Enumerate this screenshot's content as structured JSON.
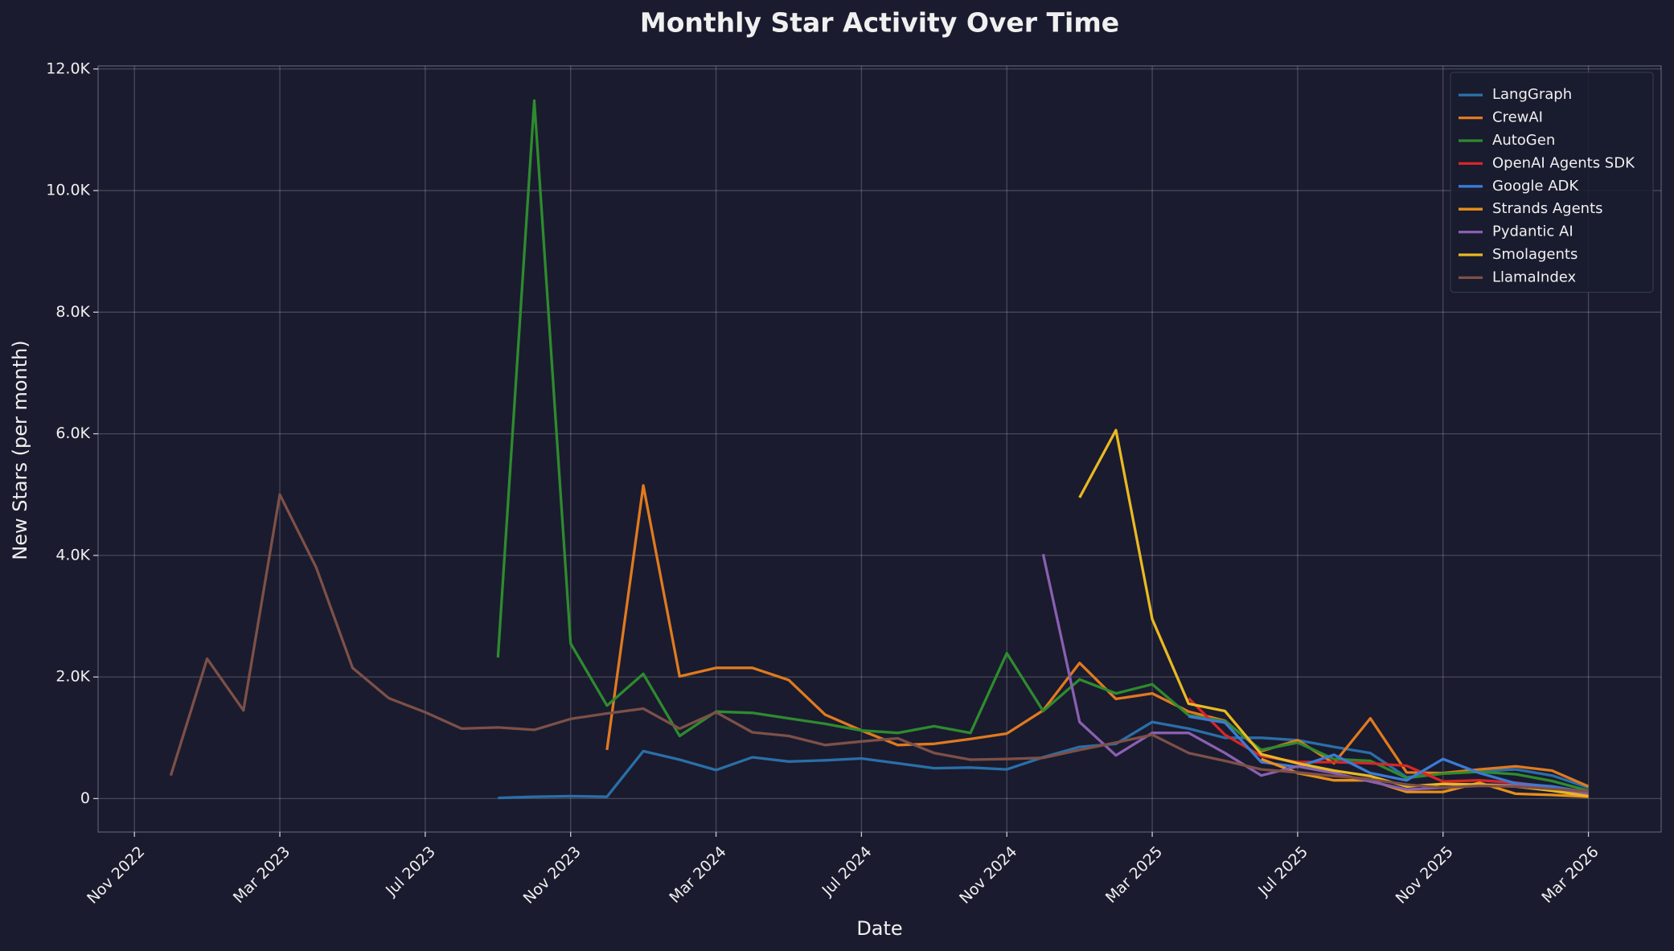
{
  "chart_data": {
    "type": "line",
    "title": "Monthly Star Activity Over Time",
    "x_label": "Date",
    "y_label": "New Stars (per month)",
    "x": [
      "2022-12",
      "2023-01",
      "2023-02",
      "2023-03",
      "2023-04",
      "2023-05",
      "2023-06",
      "2023-07",
      "2023-08",
      "2023-09",
      "2023-10",
      "2023-11",
      "2023-12",
      "2024-01",
      "2024-02",
      "2024-03",
      "2024-04",
      "2024-05",
      "2024-06",
      "2024-07",
      "2024-08",
      "2024-09",
      "2024-10",
      "2024-11",
      "2024-12",
      "2025-01",
      "2025-02",
      "2025-03",
      "2025-04",
      "2025-05",
      "2025-06",
      "2025-07",
      "2025-08",
      "2025-09",
      "2025-10",
      "2025-11",
      "2025-12",
      "2026-01",
      "2026-02",
      "2026-03"
    ],
    "xlim": [
      "2022-10",
      "2026-05"
    ],
    "xticks": [
      {
        "value": "2022-11",
        "label": "Nov 2022"
      },
      {
        "value": "2023-03",
        "label": "Mar 2023"
      },
      {
        "value": "2023-07",
        "label": "Jul 2023"
      },
      {
        "value": "2023-11",
        "label": "Nov 2023"
      },
      {
        "value": "2024-03",
        "label": "Mar 2024"
      },
      {
        "value": "2024-07",
        "label": "Jul 2024"
      },
      {
        "value": "2024-11",
        "label": "Nov 2024"
      },
      {
        "value": "2025-03",
        "label": "Mar 2025"
      },
      {
        "value": "2025-07",
        "label": "Jul 2025"
      },
      {
        "value": "2025-11",
        "label": "Nov 2025"
      },
      {
        "value": "2026-03",
        "label": "Mar 2026"
      }
    ],
    "ylim": [
      -550,
      12050
    ],
    "yticks": [
      0,
      {
        "value": 2000,
        "label": "2.0K"
      },
      {
        "value": 4000,
        "label": "4.0K"
      },
      {
        "value": 6000,
        "label": "6.0K"
      },
      {
        "value": 8000,
        "label": "8.0K"
      },
      {
        "value": 10000,
        "label": "10.0K"
      },
      {
        "value": 12000,
        "label": "12.0K"
      }
    ],
    "grid": true,
    "legend": "upper-right",
    "series": [
      {
        "name": "LangGraph",
        "color": "#2a6fa8",
        "values": [
          null,
          null,
          null,
          null,
          null,
          null,
          null,
          null,
          null,
          10,
          30,
          40,
          30,
          780,
          640,
          470,
          680,
          610,
          630,
          660,
          580,
          500,
          510,
          480,
          680,
          850,
          900,
          1260,
          1150,
          1000,
          1000,
          960,
          850,
          750,
          350,
          420,
          450,
          480,
          380,
          180
        ]
      },
      {
        "name": "CrewAI",
        "color": "#e07a1f",
        "values": [
          null,
          null,
          null,
          null,
          null,
          null,
          null,
          null,
          null,
          null,
          null,
          null,
          800,
          5150,
          2010,
          2150,
          2150,
          1950,
          1380,
          1120,
          880,
          900,
          980,
          1070,
          1450,
          2230,
          1640,
          1730,
          1430,
          1280,
          780,
          960,
          580,
          1320,
          430,
          420,
          480,
          530,
          460,
          200
        ]
      },
      {
        "name": "AutoGen",
        "color": "#2e8b2e",
        "values": [
          null,
          null,
          null,
          null,
          null,
          null,
          null,
          null,
          null,
          2320,
          11480,
          2550,
          1530,
          2050,
          1030,
          1430,
          1410,
          1320,
          1230,
          1120,
          1080,
          1190,
          1080,
          2390,
          1440,
          1960,
          1730,
          1880,
          1370,
          1270,
          800,
          920,
          650,
          620,
          340,
          410,
          440,
          400,
          290,
          130
        ]
      },
      {
        "name": "OpenAI Agents SDK",
        "color": "#d62728",
        "values": [
          null,
          null,
          null,
          null,
          null,
          null,
          null,
          null,
          null,
          null,
          null,
          null,
          null,
          null,
          null,
          null,
          null,
          null,
          null,
          null,
          null,
          null,
          null,
          null,
          null,
          null,
          null,
          null,
          1650,
          1050,
          700,
          600,
          600,
          580,
          540,
          280,
          300,
          260,
          190,
          60
        ]
      },
      {
        "name": "Google ADK",
        "color": "#3a7bd5",
        "values": [
          null,
          null,
          null,
          null,
          null,
          null,
          null,
          null,
          null,
          null,
          null,
          null,
          null,
          null,
          null,
          null,
          null,
          null,
          null,
          null,
          null,
          null,
          null,
          null,
          null,
          null,
          null,
          null,
          1350,
          1250,
          600,
          520,
          720,
          420,
          300,
          650,
          420,
          250,
          200,
          100
        ]
      },
      {
        "name": "Strands Agents",
        "color": "#e8901a",
        "values": [
          null,
          null,
          null,
          null,
          null,
          null,
          null,
          null,
          null,
          null,
          null,
          null,
          null,
          null,
          null,
          null,
          null,
          null,
          null,
          null,
          null,
          null,
          null,
          null,
          null,
          null,
          null,
          null,
          null,
          null,
          650,
          420,
          300,
          300,
          110,
          110,
          260,
          80,
          60,
          30
        ]
      },
      {
        "name": "Pydantic AI",
        "color": "#8a5fb0",
        "values": [
          null,
          null,
          null,
          null,
          null,
          null,
          null,
          null,
          null,
          null,
          null,
          null,
          null,
          null,
          null,
          null,
          null,
          null,
          null,
          null,
          null,
          null,
          null,
          null,
          4020,
          1260,
          710,
          1080,
          1080,
          750,
          380,
          530,
          420,
          280,
          150,
          180,
          230,
          220,
          160,
          90
        ]
      },
      {
        "name": "Smolagents",
        "color": "#e8b923",
        "values": [
          null,
          null,
          null,
          null,
          null,
          null,
          null,
          null,
          null,
          null,
          null,
          null,
          null,
          null,
          null,
          null,
          null,
          null,
          null,
          null,
          null,
          null,
          null,
          null,
          null,
          4950,
          6060,
          2950,
          1560,
          1440,
          730,
          580,
          460,
          370,
          200,
          240,
          230,
          200,
          130,
          40
        ]
      },
      {
        "name": "LlamaIndex",
        "color": "#7d5048",
        "values": [
          380,
          2300,
          1450,
          5000,
          3800,
          2150,
          1650,
          1420,
          1150,
          1170,
          1130,
          1310,
          1400,
          1480,
          1150,
          1420,
          1090,
          1030,
          880,
          940,
          990,
          750,
          640,
          650,
          670,
          800,
          920,
          1050,
          750,
          620,
          480,
          430,
          370,
          320,
          230,
          180,
          210,
          200,
          160,
          120
        ]
      }
    ]
  }
}
